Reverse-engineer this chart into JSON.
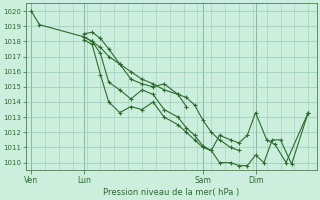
{
  "title": "Pression niveau de la mer( hPa )",
  "bg_color": "#cceedd",
  "grid_color": "#99ccbb",
  "line_color": "#2d6b2d",
  "ylim": [
    1009.5,
    1020.5
  ],
  "yticks": [
    1010,
    1011,
    1012,
    1013,
    1014,
    1015,
    1016,
    1017,
    1018,
    1019,
    1020
  ],
  "xtick_labels": [
    "Ven",
    "Lun",
    "Sam",
    "Dim"
  ],
  "xtick_positions": [
    0.0,
    0.19,
    0.62,
    0.81
  ],
  "series": [
    {
      "x": [
        0.0,
        0.03,
        0.19,
        0.22,
        0.25,
        0.28,
        0.32,
        0.36,
        0.4,
        0.44,
        0.48,
        0.53,
        0.56
      ],
      "y": [
        1020.0,
        1019.1,
        1018.3,
        1018.0,
        1017.6,
        1017.0,
        1016.5,
        1016.0,
        1015.5,
        1015.2,
        1014.8,
        1014.5,
        1013.7
      ]
    },
    {
      "x": [
        0.19,
        0.22,
        0.25,
        0.28,
        0.32,
        0.36,
        0.4,
        0.44,
        0.48,
        0.53,
        0.56,
        0.59,
        0.62,
        0.65,
        0.68,
        0.72,
        0.75
      ],
      "y": [
        1018.5,
        1018.6,
        1018.2,
        1017.5,
        1016.5,
        1015.5,
        1015.2,
        1015.0,
        1015.2,
        1014.5,
        1014.3,
        1013.8,
        1012.8,
        1012.0,
        1011.5,
        1011.0,
        1010.8
      ]
    },
    {
      "x": [
        0.19,
        0.22,
        0.25,
        0.28,
        0.32,
        0.36,
        0.4,
        0.44,
        0.48,
        0.53,
        0.56,
        0.59,
        0.62,
        0.65,
        0.68,
        0.72,
        0.75,
        0.78,
        0.81,
        0.85,
        0.88,
        0.92,
        1.0
      ],
      "y": [
        1018.3,
        1018.0,
        1017.2,
        1015.3,
        1014.8,
        1014.2,
        1014.8,
        1014.5,
        1013.5,
        1013.0,
        1012.3,
        1011.8,
        1011.1,
        1010.8,
        1011.8,
        1011.5,
        1011.3,
        1011.8,
        1013.3,
        1011.5,
        1011.2,
        1010.0,
        1013.3
      ]
    },
    {
      "x": [
        0.19,
        0.22,
        0.25,
        0.28,
        0.32,
        0.36,
        0.4,
        0.44,
        0.48,
        0.53,
        0.56,
        0.59,
        0.62,
        0.65,
        0.68,
        0.72,
        0.75,
        0.78,
        0.81,
        0.84,
        0.87,
        0.9,
        0.94,
        1.0
      ],
      "y": [
        1018.1,
        1017.8,
        1015.8,
        1014.0,
        1013.3,
        1013.7,
        1013.5,
        1014.0,
        1013.0,
        1012.5,
        1012.0,
        1011.5,
        1011.0,
        1010.8,
        1010.0,
        1010.0,
        1009.8,
        1009.8,
        1010.5,
        1010.0,
        1011.5,
        1011.5,
        1009.9,
        1013.3
      ]
    }
  ]
}
